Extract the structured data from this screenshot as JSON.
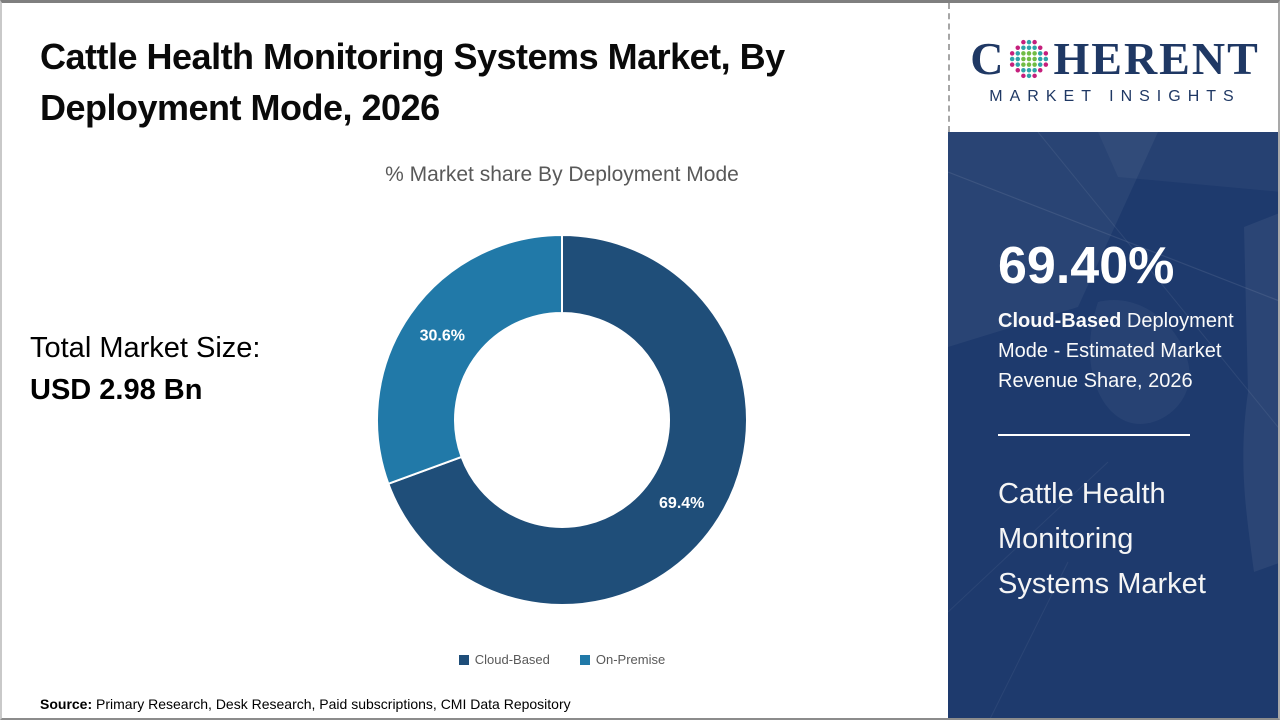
{
  "header": {
    "title_line1": "Cattle Health Monitoring Systems Market, By",
    "title_line2": "Deployment Mode, 2026"
  },
  "logo": {
    "brand_left": "C",
    "brand_right": "HERENT",
    "brand_sub": "MARKET INSIGHTS",
    "globe_icon": "dotted-globe"
  },
  "main": {
    "total_label": "Total Market Size:",
    "total_value": "USD 2.98 Bn",
    "source_label": "Source:",
    "source_text": " Primary Research, Desk Research, Paid subscriptions, CMI Data Repository"
  },
  "sidebar": {
    "stat_value": "69.40%",
    "stat_bold": "Cloud-Based",
    "stat_rest": "Deployment Mode - Estimated Market Revenue Share, 2026",
    "market_name": "Cattle Health Monitoring Systems Market"
  },
  "chart_data": {
    "type": "pie",
    "subtype": "donut",
    "title": "% Market share By Deployment Mode",
    "labels": [
      "Cloud-Based",
      "On-Premise"
    ],
    "values": [
      69.4,
      30.6
    ],
    "colors": [
      "#1F4E79",
      "#2179A8"
    ],
    "data_labels": [
      "69.4%",
      "30.6%"
    ],
    "start_angle_deg": 0,
    "direction": "clockwise",
    "inner_radius_ratio": 0.58,
    "legend_position": "bottom"
  },
  "colors": {
    "accent_dark": "#1F4E79",
    "accent_teal": "#2179A8",
    "sidebar_bg": "#1E3A6D",
    "muted_text": "#595959",
    "logo_navy": "#1F3864",
    "globe_green": "#72BC44",
    "globe_teal": "#2FA3A9",
    "globe_magenta": "#C51F7C"
  }
}
